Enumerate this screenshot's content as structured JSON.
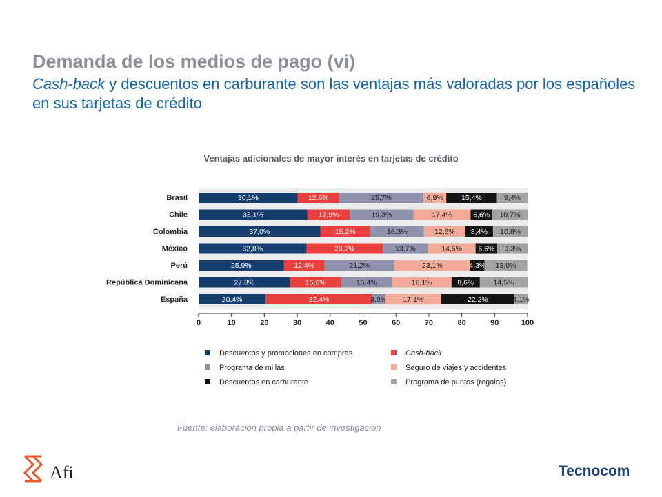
{
  "header": {
    "title": "Demanda de los medios de pago (vi)",
    "subtitle_italic": "Cash-back",
    "subtitle_rest": " y descuentos en carburante son las ventajas más valoradas por los españoles en sus tarjetas de crédito"
  },
  "chart_data": {
    "type": "bar",
    "orientation": "horizontal-stacked",
    "title": "Ventajas adicionales de mayor interés en tarjetas de crédito",
    "categories": [
      "Brasil",
      "Chile",
      "Colombia",
      "México",
      "Perú",
      "República Dominicana",
      "España"
    ],
    "xlim": [
      0,
      100
    ],
    "xticks": [
      0,
      10,
      20,
      30,
      40,
      50,
      60,
      70,
      80,
      90,
      100
    ],
    "grid": false,
    "legend_position": "bottom",
    "series": [
      {
        "name": "Descuentos y promociones en compras",
        "color": "#153e6e",
        "label_color": "#ffffff",
        "italic": false,
        "values": [
          30.1,
          33.1,
          37.0,
          32.8,
          25.9,
          27.8,
          20.4
        ],
        "labels": [
          "30,1%",
          "33,1%",
          "37,0%",
          "32,8%",
          "25,9%",
          "27,8%",
          "20,4%"
        ]
      },
      {
        "name": "Cash-back",
        "color": "#e8403f",
        "label_color": "#ffffff",
        "italic": true,
        "values": [
          12.6,
          12.9,
          15.2,
          23.2,
          12.4,
          15.6,
          32.4
        ],
        "labels": [
          "12,6%",
          "12,9%",
          "15,2%",
          "23,2%",
          "12,4%",
          "15,6%",
          "32,4%"
        ]
      },
      {
        "name": "Programa de millas",
        "color": "#8e92ad",
        "label_color": "#1f1f1f",
        "italic": false,
        "values": [
          25.7,
          19.3,
          16.3,
          13.7,
          21.2,
          15.4,
          3.9
        ],
        "labels": [
          "25,7%",
          "19,3%",
          "16,3%",
          "13,7%",
          "21,2%",
          "15,4%",
          "3,9%"
        ]
      },
      {
        "name": "Seguro de viajes y accidentes",
        "color": "#f4aa98",
        "label_color": "#1f1f1f",
        "italic": false,
        "values": [
          6.9,
          17.4,
          12.6,
          14.5,
          23.1,
          18.1,
          17.1
        ],
        "labels": [
          "6,9%",
          "17,4%",
          "12,6%",
          "14,5%",
          "23,1%",
          "18,1%",
          "17,1%"
        ]
      },
      {
        "name": "Descuentos en carburante",
        "color": "#141414",
        "label_color": "#ffffff",
        "italic": false,
        "values": [
          15.4,
          6.6,
          8.4,
          6.6,
          4.3,
          8.6,
          22.2
        ],
        "labels": [
          "15,4%",
          "6,6%",
          "8,4%",
          "6,6%",
          "4,3%",
          "8,6%",
          "22,2%"
        ]
      },
      {
        "name": "Programa de puntos (regalos)",
        "color": "#a3a3a3",
        "label_color": "#1f1f1f",
        "italic": false,
        "values": [
          9.4,
          10.7,
          10.6,
          9.3,
          13.0,
          14.5,
          4.1
        ],
        "labels": [
          "9,4%",
          "10,7%",
          "10,6%",
          "9,3%",
          "13,0%",
          "14,5%",
          "4,1%"
        ]
      }
    ]
  },
  "source": "Fuente: elaboración propia a partir de investigación",
  "logos": {
    "afi": "Afi",
    "tecnocom": "Tecnocom"
  }
}
